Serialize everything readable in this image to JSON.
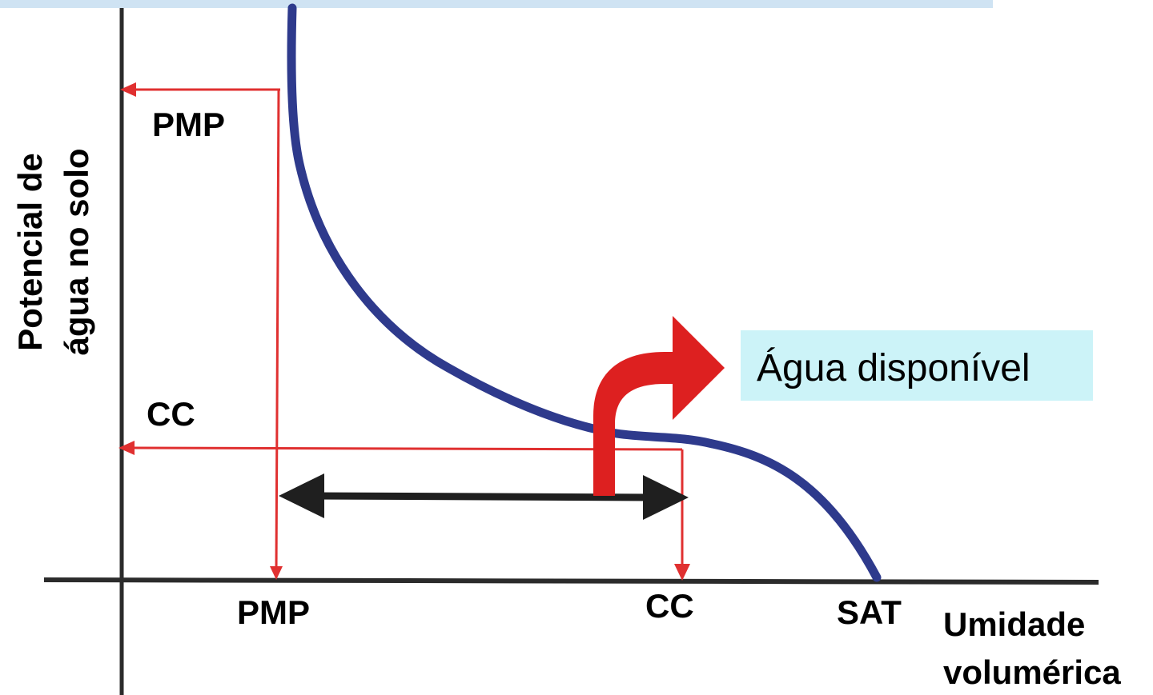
{
  "diagram": {
    "y_axis_label_line1": "Potencial de",
    "y_axis_label_line2": "água no solo",
    "x_axis_label_line1": "Umidade",
    "x_axis_label_line2": "volumérica",
    "y_marker_pmp": "PMP",
    "y_marker_cc": "CC",
    "x_marker_pmp": "PMP",
    "x_marker_cc": "CC",
    "x_marker_sat": "SAT",
    "callout": "Água disponível"
  },
  "colors": {
    "axis": "#2b2b2b",
    "curve": "#2e3a8c",
    "guide_lines": "#e03030",
    "arrow_red": "#dd2020",
    "double_arrow": "#1f1f1f",
    "callout_bg": "#ccf3f8",
    "top_band": "#cfe3f3"
  }
}
